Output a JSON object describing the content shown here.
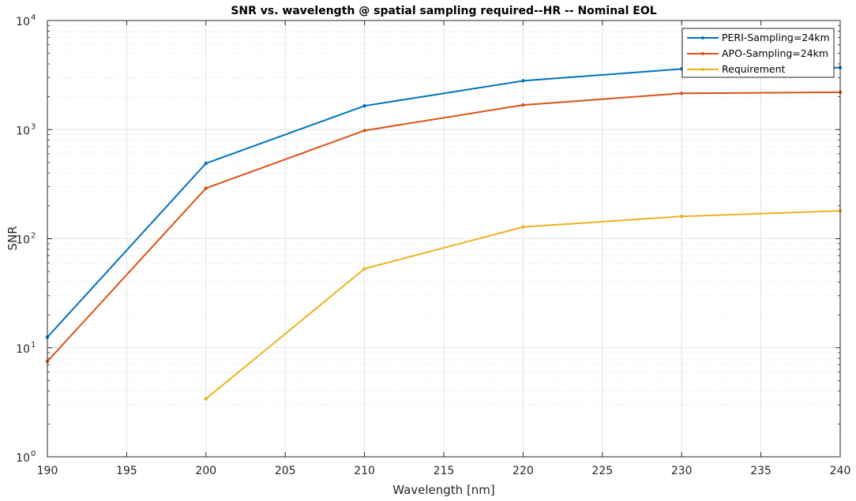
{
  "chart_data": {
    "type": "line",
    "title": "SNR vs. wavelength @ spatial sampling required--HR -- Nominal EOL",
    "xlabel": "Wavelength [nm]",
    "ylabel": "SNR",
    "xlim": [
      190,
      240
    ],
    "ylim": [
      1,
      10000
    ],
    "yscale": "log",
    "grid": true,
    "legend_position": "top-right",
    "x_ticks": [
      190,
      195,
      200,
      205,
      210,
      215,
      220,
      225,
      230,
      235,
      240
    ],
    "y_ticks": [
      1,
      10,
      100,
      1000,
      10000
    ],
    "y_tick_labels": [
      {
        "base": "10",
        "exp": "0"
      },
      {
        "base": "10",
        "exp": "1"
      },
      {
        "base": "10",
        "exp": "2"
      },
      {
        "base": "10",
        "exp": "3"
      },
      {
        "base": "10",
        "exp": "4"
      }
    ],
    "series": [
      {
        "name": "PERI-Sampling=24km",
        "color": "#0072bd",
        "x": [
          190,
          200,
          210,
          220,
          230,
          240
        ],
        "y": [
          12.5,
          490,
          1650,
          2800,
          3600,
          3700
        ]
      },
      {
        "name": "APO-Sampling=24km",
        "color": "#d95319",
        "x": [
          190,
          200,
          210,
          220,
          230,
          240
        ],
        "y": [
          7.5,
          290,
          980,
          1680,
          2150,
          2200
        ]
      },
      {
        "name": "Requirement",
        "color": "#edb120",
        "x": [
          200,
          210,
          220,
          230,
          240
        ],
        "y": [
          3.4,
          53,
          128,
          160,
          180
        ]
      }
    ]
  }
}
